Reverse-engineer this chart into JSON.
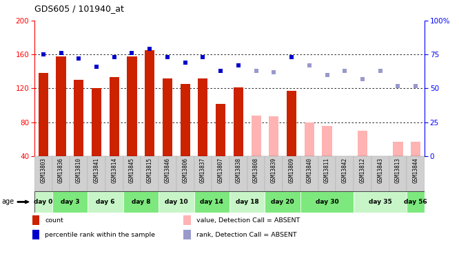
{
  "title": "GDS605 / 101940_at",
  "samples": [
    "GSM13803",
    "GSM13836",
    "GSM13810",
    "GSM13841",
    "GSM13814",
    "GSM13845",
    "GSM13815",
    "GSM13846",
    "GSM13806",
    "GSM13837",
    "GSM13807",
    "GSM13838",
    "GSM13808",
    "GSM13839",
    "GSM13809",
    "GSM13840",
    "GSM13811",
    "GSM13842",
    "GSM13812",
    "GSM13843",
    "GSM13813",
    "GSM13844"
  ],
  "count_present": [
    138,
    158,
    130,
    120,
    133,
    158,
    165,
    132,
    125,
    132,
    102,
    121,
    null,
    null,
    117,
    null,
    null,
    null,
    null,
    null,
    null,
    null
  ],
  "count_absent": [
    null,
    null,
    null,
    null,
    null,
    null,
    null,
    null,
    null,
    null,
    null,
    null,
    88,
    87,
    null,
    80,
    76,
    null,
    70,
    null,
    57,
    57
  ],
  "rank_present": [
    75,
    76,
    72,
    66,
    73,
    76,
    79,
    73,
    69,
    73,
    63,
    67,
    null,
    null,
    73,
    null,
    null,
    null,
    null,
    null,
    null,
    null
  ],
  "rank_absent": [
    null,
    null,
    null,
    null,
    null,
    null,
    null,
    null,
    null,
    null,
    null,
    null,
    63,
    62,
    null,
    67,
    60,
    63,
    57,
    63,
    52,
    52
  ],
  "day_groups": [
    {
      "label": "day 0",
      "start": 0,
      "end": 1,
      "green": false
    },
    {
      "label": "day 3",
      "start": 1,
      "end": 3,
      "green": true
    },
    {
      "label": "day 6",
      "start": 3,
      "end": 5,
      "green": false
    },
    {
      "label": "day 8",
      "start": 5,
      "end": 7,
      "green": true
    },
    {
      "label": "day 10",
      "start": 7,
      "end": 9,
      "green": false
    },
    {
      "label": "day 14",
      "start": 9,
      "end": 11,
      "green": true
    },
    {
      "label": "day 18",
      "start": 11,
      "end": 13,
      "green": false
    },
    {
      "label": "day 20",
      "start": 13,
      "end": 15,
      "green": true
    },
    {
      "label": "day 30",
      "start": 15,
      "end": 18,
      "green": false
    },
    {
      "label": "day 35",
      "start": 18,
      "end": 21,
      "green": true
    },
    {
      "label": "day 56",
      "start": 21,
      "end": 22,
      "green": false
    }
  ],
  "ylim_left": [
    40,
    200
  ],
  "ylim_right": [
    0,
    100
  ],
  "yticks_left": [
    40,
    80,
    120,
    160,
    200
  ],
  "yticks_right": [
    0,
    25,
    50,
    75,
    100
  ],
  "bar_color_present": "#cc2200",
  "bar_color_absent": "#ffb3b3",
  "square_color_present": "#0000cc",
  "square_color_absent": "#9999cc",
  "bar_width": 0.55
}
